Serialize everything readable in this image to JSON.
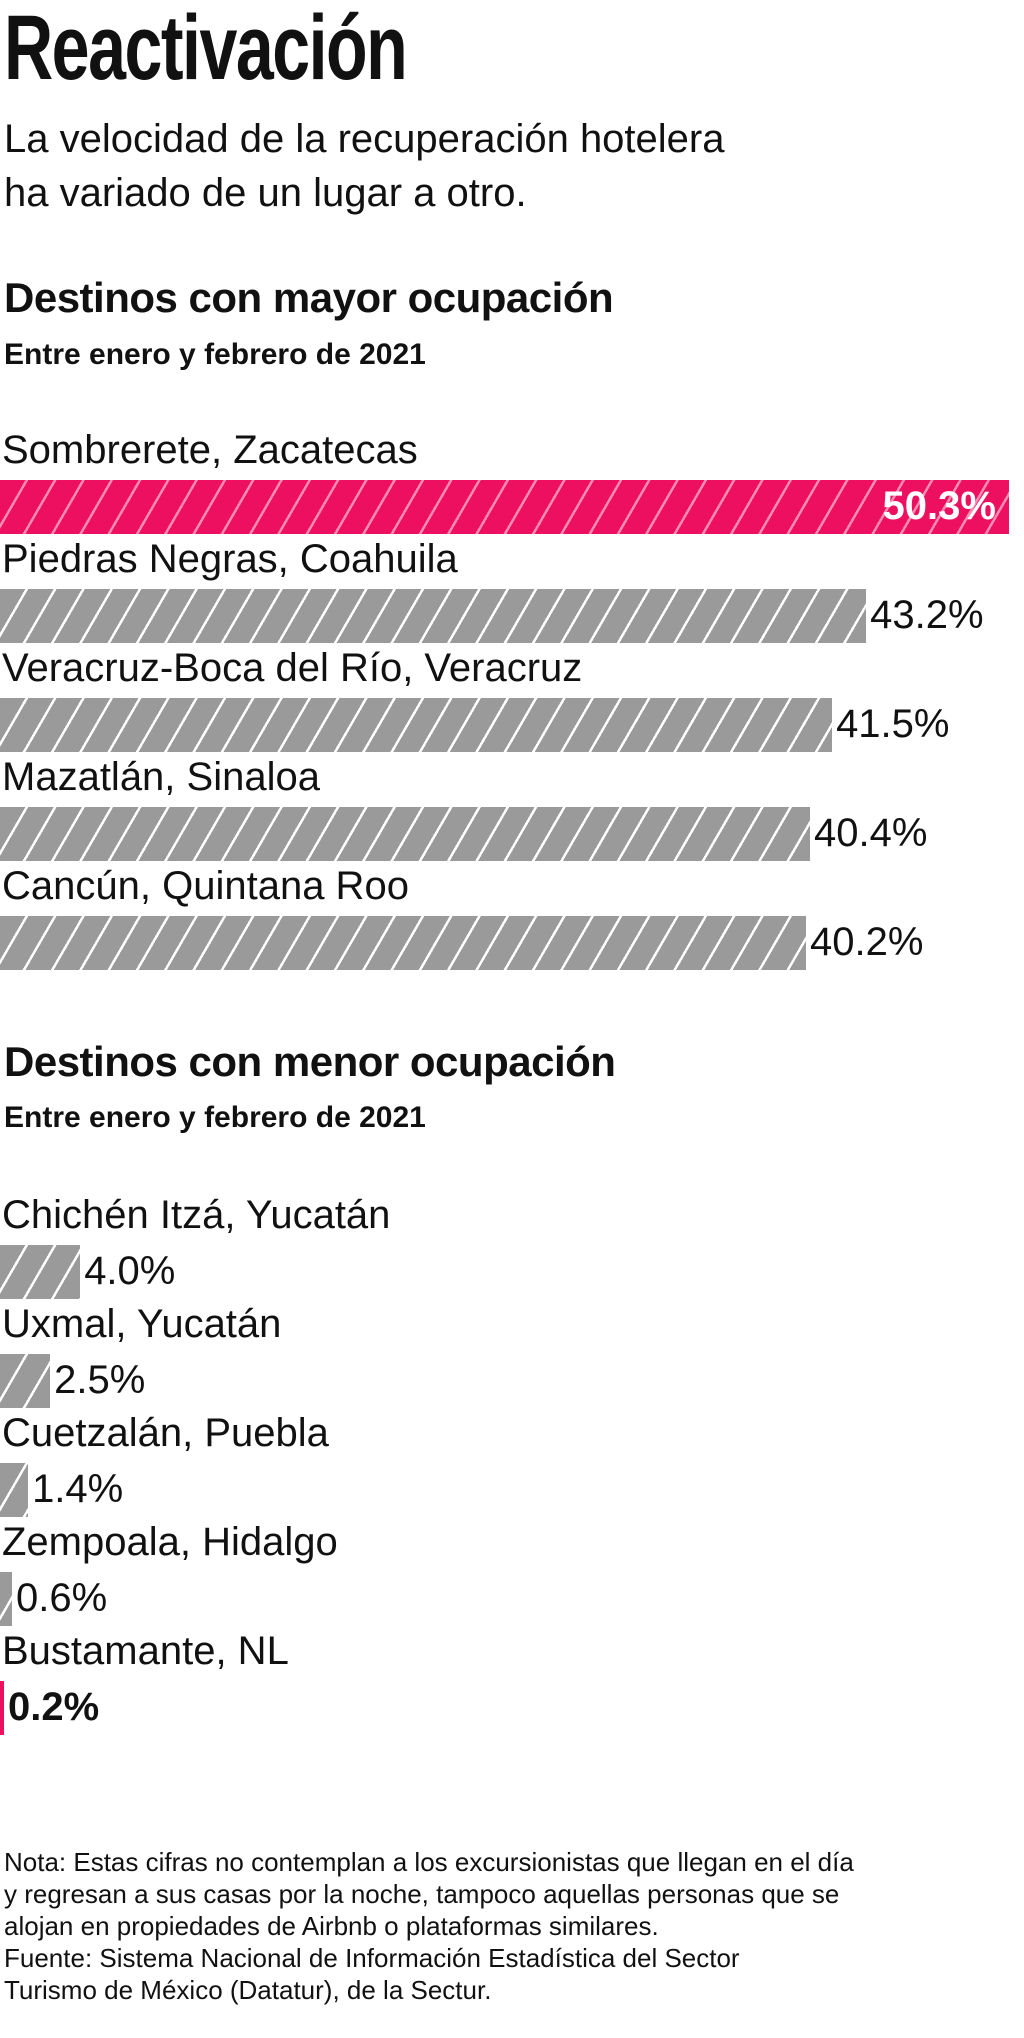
{
  "title": "Reactivación",
  "subtitle": [
    "La velocidad de la recuperación hotelera",
    "ha variado de un lugar a otro."
  ],
  "chart_data": [
    {
      "type": "bar",
      "orientation": "horizontal",
      "title": "Destinos con mayor ocupación",
      "subtitle": "Entre enero y febrero de 2021",
      "categories": [
        "Sombrerete, Zacatecas",
        "Piedras Negras, Coahuila",
        "Veracruz-Boca del Río, Veracruz",
        "Mazatlán, Sinaloa",
        "Cancún, Quintana Roo"
      ],
      "values": [
        50.3,
        43.2,
        41.5,
        40.4,
        40.2
      ],
      "labels": [
        "50.3%",
        "43.2%",
        "41.5%",
        "40.4%",
        "40.2%"
      ],
      "highlight": [
        true,
        false,
        false,
        false,
        false
      ],
      "unit": "%"
    },
    {
      "type": "bar",
      "orientation": "horizontal",
      "title": "Destinos con menor ocupación",
      "subtitle": "Entre enero y febrero de 2021",
      "categories": [
        "Chichén Itzá, Yucatán",
        "Uxmal, Yucatán",
        "Cuetzalán, Puebla",
        "Zempoala, Hidalgo",
        "Bustamante, NL"
      ],
      "values": [
        4.0,
        2.5,
        1.4,
        0.6,
        0.2
      ],
      "labels": [
        "4.0%",
        "2.5%",
        "1.4%",
        "0.6%",
        "0.2%"
      ],
      "highlight": [
        false,
        false,
        false,
        false,
        true
      ],
      "unit": "%"
    }
  ],
  "colors": {
    "highlight": "#ee1060",
    "bar": "#9a9a9a"
  },
  "note": [
    "Nota: Estas cifras no contemplan a los excursionistas que llegan en el día",
    "y regresan a sus casas por la noche, tampoco aquellas personas que se",
    "alojan en propiedades de Airbnb o plataformas similares.",
    "Fuente: Sistema Nacional de Información Estadística del Sector",
    "Turismo de México (Datatur), de la Sectur."
  ]
}
